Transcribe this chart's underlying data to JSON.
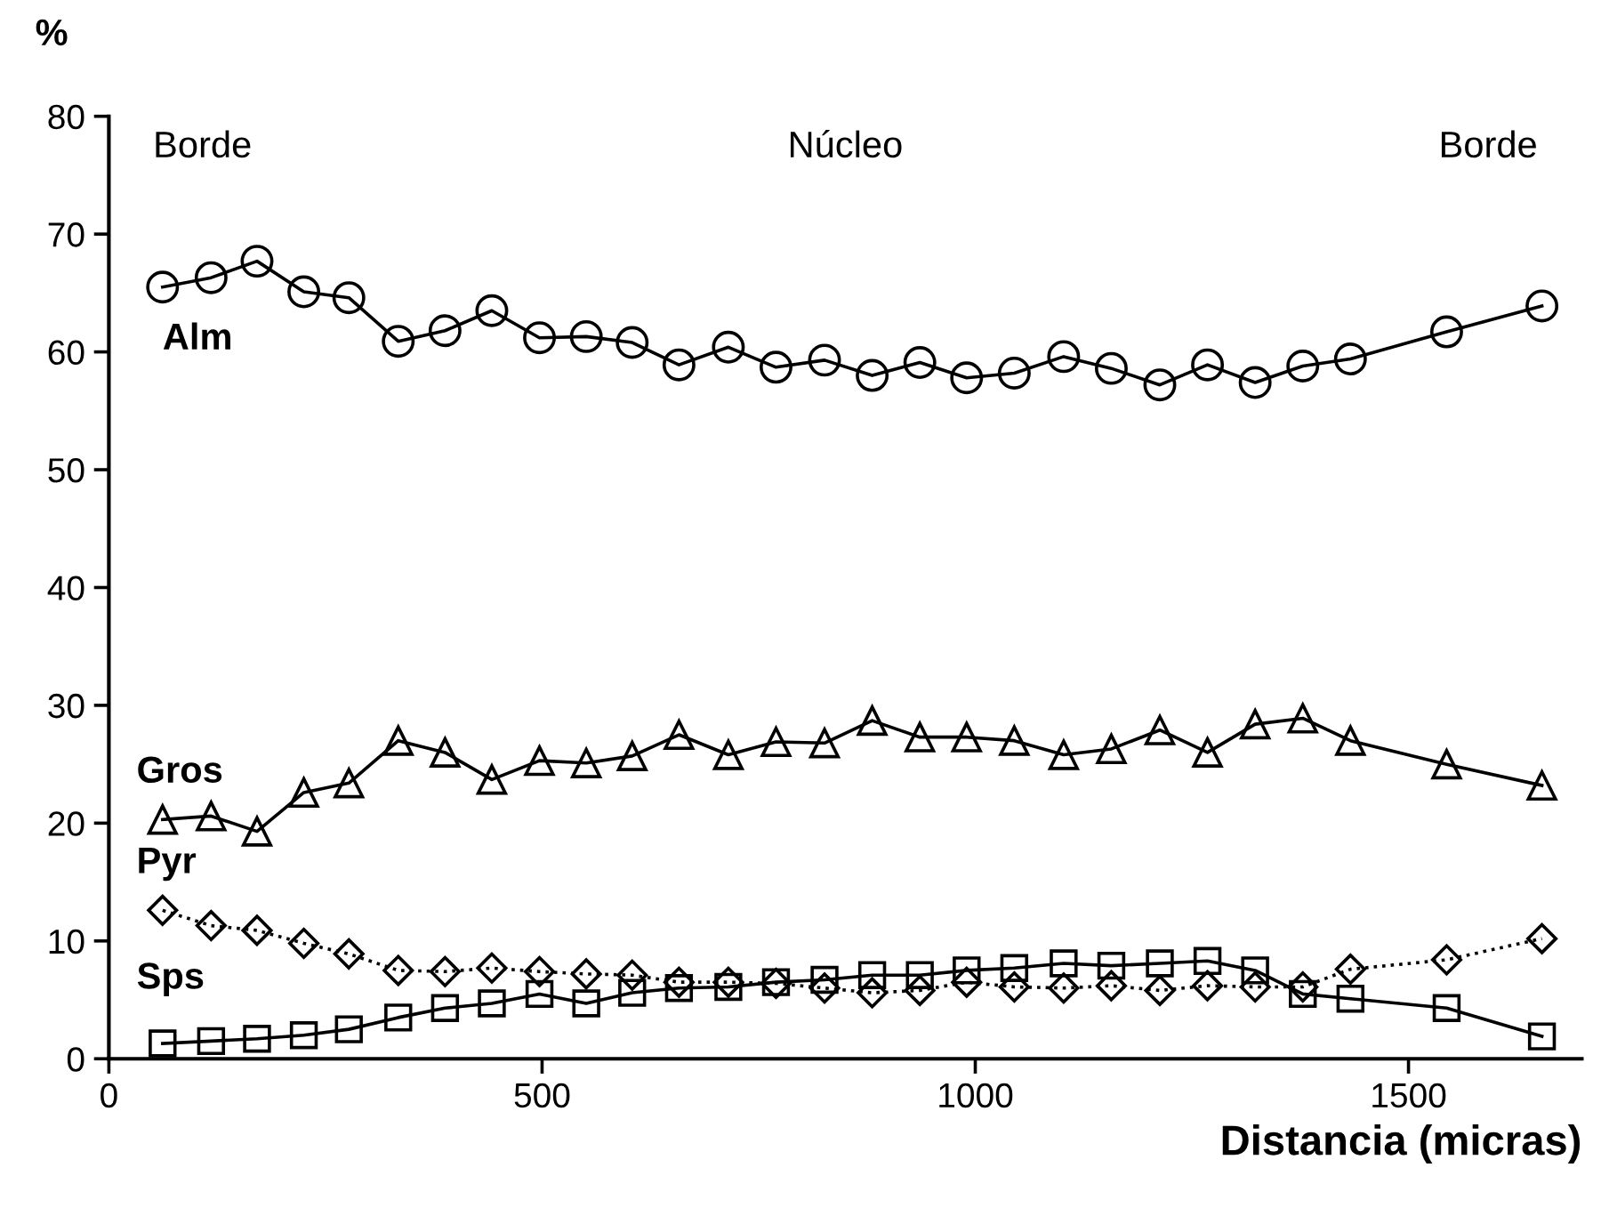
{
  "chart_data": {
    "type": "line",
    "xlabel": "Distancia (micras)",
    "ylabel": "%",
    "annotations": [
      "Borde",
      "Núcleo",
      "Borde"
    ],
    "x": [
      62,
      118,
      171,
      225,
      277,
      334,
      388,
      442,
      497,
      551,
      604,
      658,
      715,
      770,
      826,
      881,
      936,
      990,
      1045,
      1102,
      1157,
      1213,
      1268,
      1323,
      1378,
      1433,
      1544,
      1654
    ],
    "series": [
      {
        "name": "Alm",
        "color": "#000000",
        "marker": "circle",
        "line_style": "solid",
        "values": [
          65.5,
          66.3,
          67.7,
          65.1,
          64.6,
          60.9,
          61.8,
          63.5,
          61.2,
          61.3,
          60.8,
          58.9,
          60.4,
          58.7,
          59.3,
          58.0,
          59.1,
          57.8,
          58.2,
          59.6,
          58.6,
          57.2,
          58.9,
          57.4,
          58.8,
          59.4,
          61.7,
          63.9
        ]
      },
      {
        "name": "Gros",
        "color": "#000000",
        "marker": "triangle",
        "line_style": "solid",
        "values": [
          20.3,
          20.6,
          19.3,
          22.6,
          23.4,
          27.0,
          26.0,
          23.7,
          25.3,
          25.1,
          25.7,
          27.5,
          25.8,
          26.9,
          26.8,
          28.7,
          27.3,
          27.3,
          27.0,
          25.8,
          26.3,
          27.9,
          26.0,
          28.4,
          28.9,
          27.0,
          25.0,
          23.2
        ]
      },
      {
        "name": "Pyr",
        "color": "#000000",
        "marker": "diamond",
        "line_style": "dotted",
        "values": [
          12.6,
          11.3,
          10.9,
          9.8,
          8.9,
          7.5,
          7.4,
          7.7,
          7.4,
          7.2,
          7.1,
          6.5,
          6.5,
          6.4,
          6.0,
          5.6,
          5.8,
          6.5,
          6.1,
          6.0,
          6.2,
          5.8,
          6.2,
          6.1,
          6.1,
          7.6,
          8.4,
          10.2
        ]
      },
      {
        "name": "Sps",
        "color": "#000000",
        "marker": "square",
        "line_style": "solid",
        "values": [
          1.3,
          1.5,
          1.7,
          2.0,
          2.5,
          3.5,
          4.3,
          4.7,
          5.5,
          4.7,
          5.6,
          6.0,
          6.1,
          6.5,
          6.7,
          7.1,
          7.1,
          7.5,
          7.7,
          8.1,
          7.9,
          8.1,
          8.3,
          7.5,
          5.5,
          5.1,
          4.3,
          1.9
        ]
      }
    ],
    "xlim": [
      0,
      1700
    ],
    "xticks": [
      0,
      500,
      1000,
      1500
    ],
    "ylim": [
      0,
      80
    ],
    "yticks": [
      0,
      10,
      20,
      30,
      40,
      50,
      60,
      70,
      80
    ],
    "grid": false,
    "legend": false
  }
}
